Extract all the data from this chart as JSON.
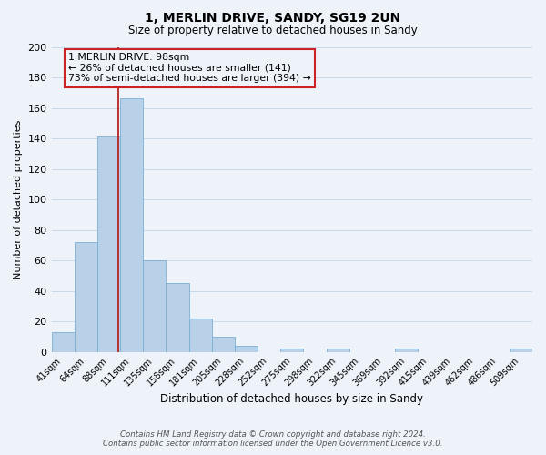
{
  "title": "1, MERLIN DRIVE, SANDY, SG19 2UN",
  "subtitle": "Size of property relative to detached houses in Sandy",
  "xlabel": "Distribution of detached houses by size in Sandy",
  "ylabel": "Number of detached properties",
  "bin_labels": [
    "41sqm",
    "64sqm",
    "88sqm",
    "111sqm",
    "135sqm",
    "158sqm",
    "181sqm",
    "205sqm",
    "228sqm",
    "252sqm",
    "275sqm",
    "298sqm",
    "322sqm",
    "345sqm",
    "369sqm",
    "392sqm",
    "415sqm",
    "439sqm",
    "462sqm",
    "486sqm",
    "509sqm"
  ],
  "bar_heights": [
    13,
    72,
    141,
    166,
    60,
    45,
    22,
    10,
    4,
    0,
    2,
    0,
    2,
    0,
    0,
    2,
    0,
    0,
    0,
    0,
    2
  ],
  "bar_color": "#b8d0e8",
  "bar_edge_color": "#7aafd4",
  "grid_color": "#c8d8ea",
  "vline_color": "#bb2222",
  "annotation_text": "1 MERLIN DRIVE: 98sqm\n← 26% of detached houses are smaller (141)\n73% of semi-detached houses are larger (394) →",
  "annotation_box_color": "#cc2222",
  "ylim": [
    0,
    200
  ],
  "yticks": [
    0,
    20,
    40,
    60,
    80,
    100,
    120,
    140,
    160,
    180,
    200
  ],
  "footer_line1": "Contains HM Land Registry data © Crown copyright and database right 2024.",
  "footer_line2": "Contains public sector information licensed under the Open Government Licence v3.0.",
  "bg_color": "#eef3fa"
}
